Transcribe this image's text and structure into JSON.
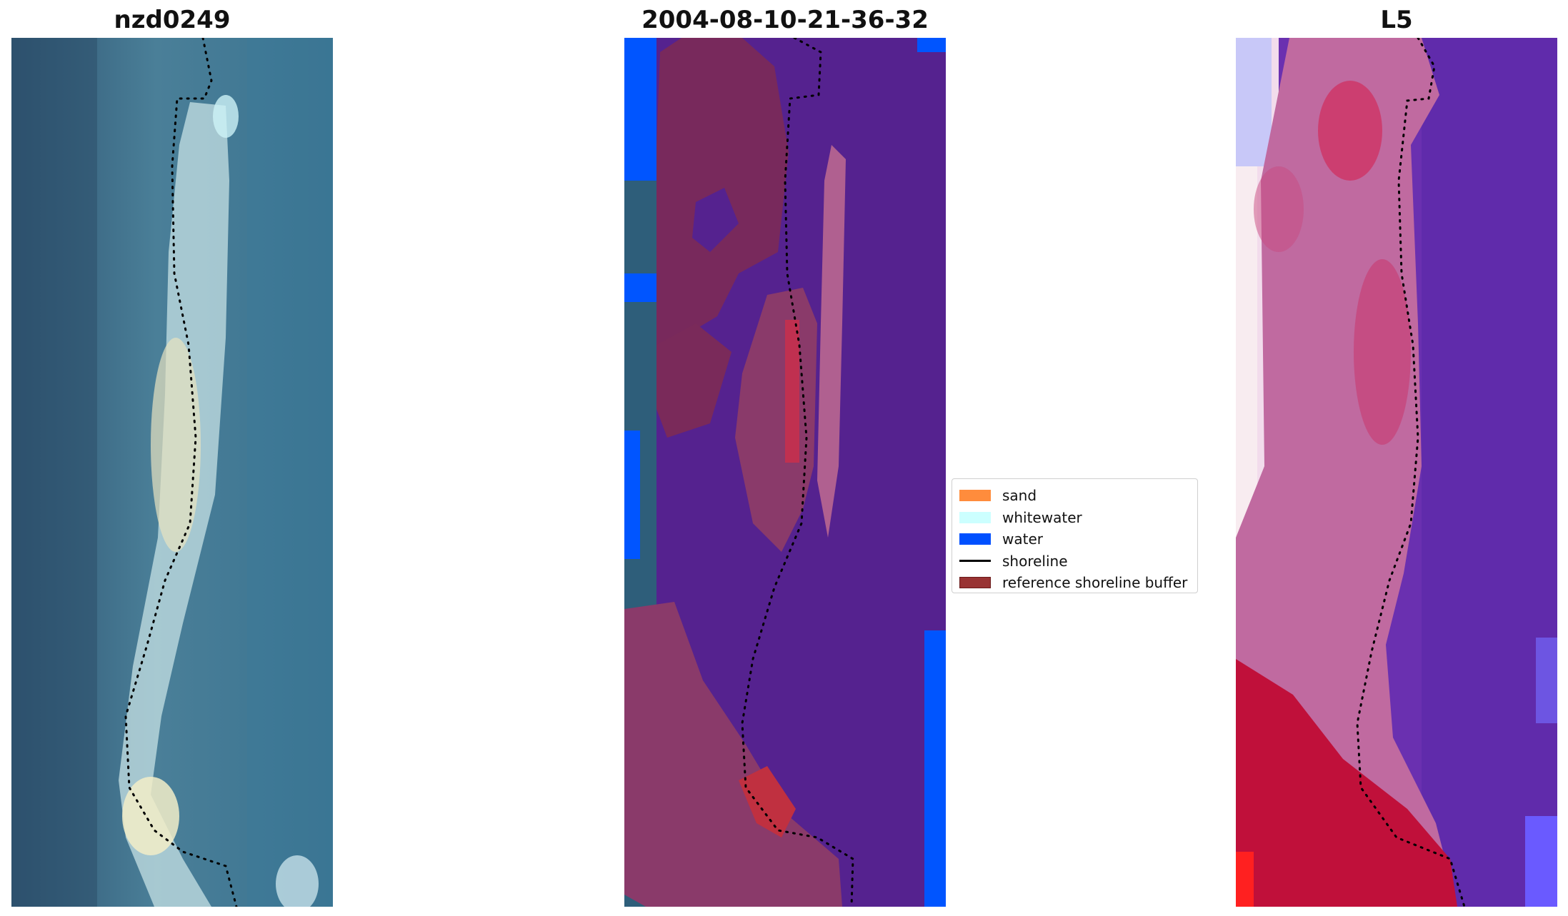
{
  "panels": [
    {
      "title": "nzd0249"
    },
    {
      "title": "2004-08-10-21-36-32"
    },
    {
      "title": "L5"
    }
  ],
  "legend": {
    "items": [
      {
        "label": "sand",
        "color": "#ff8c3c"
      },
      {
        "label": "whitewater",
        "color": "#ccffff"
      },
      {
        "label": "water",
        "color": "#0050ff"
      },
      {
        "label": "shoreline",
        "color": "#000000"
      },
      {
        "label": "reference shoreline buffer",
        "color": "#993333"
      }
    ]
  },
  "colors": {
    "rgb_water": "#3f6f8e",
    "class_water_purple": "#55228f",
    "class_bright_blue": "#0055ff",
    "buffer_maroon": "#7a2a5a",
    "index_purple": "#6a30b0",
    "index_red": "#c0103a"
  }
}
